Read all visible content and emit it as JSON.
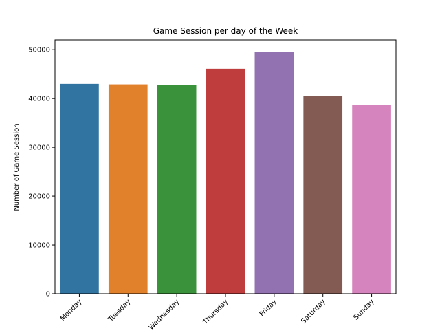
{
  "chart_data": {
    "type": "bar",
    "title": "Game Session per day of the Week",
    "xlabel": "",
    "ylabel": "Number of Game Session",
    "categories": [
      "Monday",
      "Tuesday",
      "Wednesday",
      "Thursday",
      "Friday",
      "Saturday",
      "Sunday"
    ],
    "values": [
      43000,
      42900,
      42700,
      46100,
      49500,
      40500,
      38700
    ],
    "colors": [
      "#3274a1",
      "#e1812c",
      "#3a923a",
      "#c03d3e",
      "#9372b2",
      "#845b53",
      "#d684bd"
    ],
    "ylim": [
      0,
      52000
    ],
    "yticks": [
      0,
      10000,
      20000,
      30000,
      40000,
      50000
    ],
    "grid": false,
    "legend": "none"
  }
}
